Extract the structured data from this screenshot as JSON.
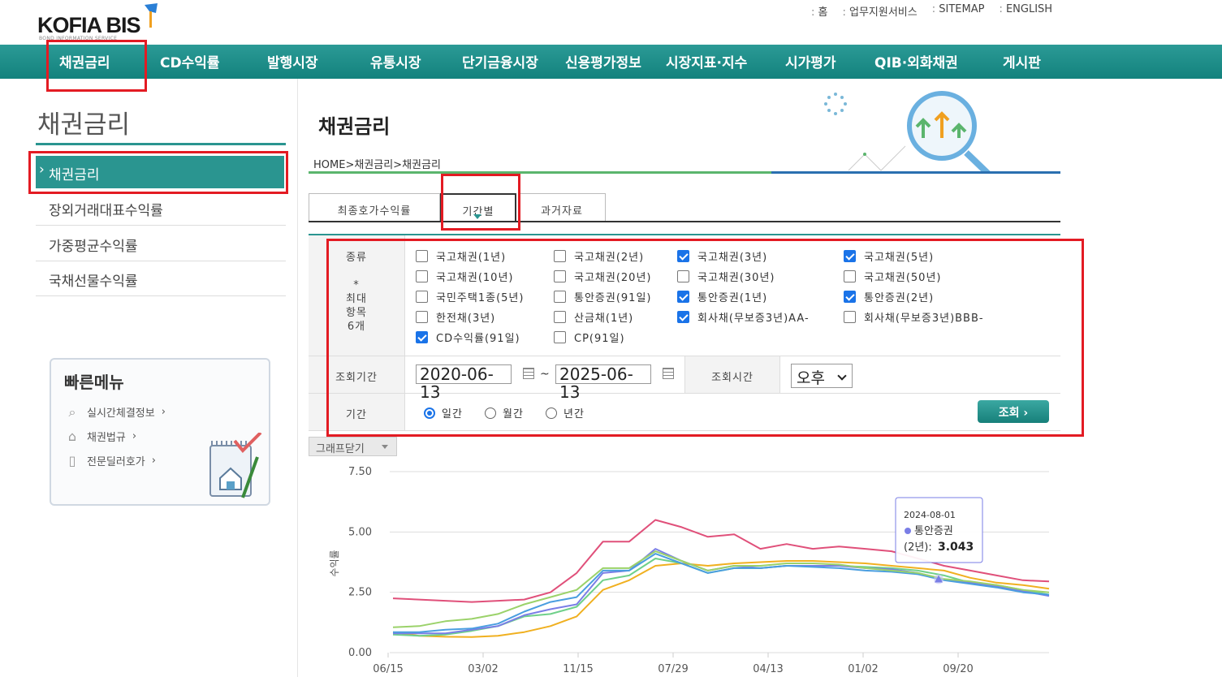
{
  "header": {
    "logo": "KOFIA BIS",
    "logo_sub": "BOND INFORMATION SERVICE",
    "toplinks": [
      "홈",
      "업무지원서비스",
      "SITEMAP",
      "ENGLISH"
    ]
  },
  "gnb": [
    "채권금리",
    "CD수익률",
    "발행시장",
    "유통시장",
    "단기금융시장",
    "신용평가정보",
    "시장지표·지수",
    "시가평가",
    "QIB·외화채권",
    "게시판"
  ],
  "sidebar": {
    "title": "채권금리",
    "items": [
      "채권금리",
      "장외거래대표수익률",
      "가중평균수익률",
      "국채선물수익률"
    ]
  },
  "quick_menu": {
    "title": "빠른메뉴",
    "items": [
      "실시간체결정보",
      "채권법규",
      "전문딜러호가"
    ]
  },
  "main": {
    "title": "채권금리",
    "breadcrumb": "HOME>채권금리>채권금리",
    "tabs": [
      "최종호가수익률",
      "기간별",
      "과거자료"
    ],
    "form": {
      "type_label": "종류",
      "max_note": [
        "*",
        "최대",
        "항목",
        "6개"
      ],
      "options": [
        {
          "label": "국고채권(1년)",
          "checked": false
        },
        {
          "label": "국고채권(2년)",
          "checked": false
        },
        {
          "label": "국고채권(3년)",
          "checked": true
        },
        {
          "label": "국고채권(5년)",
          "checked": true
        },
        {
          "label": "국고채권(10년)",
          "checked": false
        },
        {
          "label": "국고채권(20년)",
          "checked": false
        },
        {
          "label": "국고채권(30년)",
          "checked": false
        },
        {
          "label": "국고채권(50년)",
          "checked": false
        },
        {
          "label": "국민주택1종(5년)",
          "checked": false
        },
        {
          "label": "통안증권(91일)",
          "checked": false
        },
        {
          "label": "통안증권(1년)",
          "checked": true
        },
        {
          "label": "통안증권(2년)",
          "checked": true
        },
        {
          "label": "한전채(3년)",
          "checked": false
        },
        {
          "label": "산금채(1년)",
          "checked": false
        },
        {
          "label": "회사채(무보증3년)AA-",
          "checked": true
        },
        {
          "label": "회사채(무보증3년)BBB-",
          "checked": false
        },
        {
          "label": "CD수익률(91일)",
          "checked": true
        },
        {
          "label": "CP(91일)",
          "checked": false
        }
      ],
      "period_label": "조회기간",
      "start_date": "2020-06-13",
      "end_date": "2025-06-13",
      "tilde": "~",
      "time_label": "조회시간",
      "time_value": "오후",
      "range_label": "기간",
      "range_options": [
        {
          "label": "일간",
          "checked": true
        },
        {
          "label": "월간",
          "checked": false
        },
        {
          "label": "년간",
          "checked": false
        }
      ],
      "search_button": "조회 ›"
    },
    "graph_toggle": "그래프닫기"
  },
  "chart_data": {
    "type": "line",
    "ylabel": "수익률",
    "ylim": [
      0,
      7.5
    ],
    "yticks": [
      "7.50",
      "5.00",
      "2.50",
      "0.00"
    ],
    "xticks": [
      "06/15",
      "03/02",
      "11/15",
      "07/29",
      "04/13",
      "01/02",
      "09/20"
    ],
    "tooltip": {
      "date": "2024-08-01",
      "series": "통안증권",
      "series_line2": "(2년): ",
      "value": "3.043"
    },
    "series": [
      {
        "name": "회사채(무보증3년)AA-",
        "color": "#e0507a",
        "values": [
          2.25,
          2.2,
          2.15,
          2.1,
          2.15,
          2.2,
          2.5,
          3.3,
          4.6,
          4.6,
          5.5,
          5.2,
          4.8,
          4.9,
          4.3,
          4.5,
          4.3,
          4.4,
          4.3,
          4.2,
          3.9,
          3.6,
          3.4,
          3.2,
          3.0,
          2.95
        ]
      },
      {
        "name": "CD수익률(91일)",
        "color": "#f0b020",
        "values": [
          0.85,
          0.7,
          0.66,
          0.65,
          0.7,
          0.85,
          1.1,
          1.5,
          2.6,
          3.0,
          3.6,
          3.7,
          3.6,
          3.7,
          3.75,
          3.8,
          3.8,
          3.75,
          3.7,
          3.6,
          3.5,
          3.4,
          3.1,
          2.9,
          2.8,
          2.65
        ]
      },
      {
        "name": "통안증권(1년)",
        "color": "#6fd08a",
        "values": [
          0.75,
          0.7,
          0.75,
          0.9,
          1.1,
          1.5,
          1.6,
          1.9,
          3.0,
          3.2,
          3.9,
          3.7,
          3.3,
          3.5,
          3.5,
          3.6,
          3.6,
          3.6,
          3.55,
          3.5,
          3.4,
          3.2,
          2.9,
          2.8,
          2.6,
          2.4
        ]
      },
      {
        "name": "통안증권(2년)",
        "color": "#7a7ee6",
        "values": [
          0.8,
          0.8,
          0.8,
          0.95,
          1.1,
          1.55,
          1.8,
          2.0,
          3.3,
          3.4,
          4.3,
          3.8,
          3.4,
          3.6,
          3.5,
          3.6,
          3.6,
          3.6,
          3.5,
          3.45,
          3.3,
          3.04,
          2.9,
          2.75,
          2.55,
          2.35
        ]
      },
      {
        "name": "국고채권(3년)",
        "color": "#4a9ee0",
        "values": [
          0.85,
          0.85,
          0.95,
          1.0,
          1.2,
          1.7,
          2.1,
          2.3,
          3.4,
          3.4,
          4.1,
          3.7,
          3.3,
          3.5,
          3.5,
          3.6,
          3.55,
          3.5,
          3.4,
          3.35,
          3.25,
          3.0,
          2.85,
          2.7,
          2.5,
          2.4
        ]
      },
      {
        "name": "국고채권(5년)",
        "color": "#9bd26a",
        "values": [
          1.05,
          1.1,
          1.3,
          1.4,
          1.6,
          2.0,
          2.3,
          2.6,
          3.5,
          3.5,
          4.2,
          3.8,
          3.4,
          3.6,
          3.6,
          3.7,
          3.7,
          3.65,
          3.5,
          3.4,
          3.3,
          3.05,
          2.95,
          2.8,
          2.6,
          2.5
        ]
      }
    ]
  }
}
